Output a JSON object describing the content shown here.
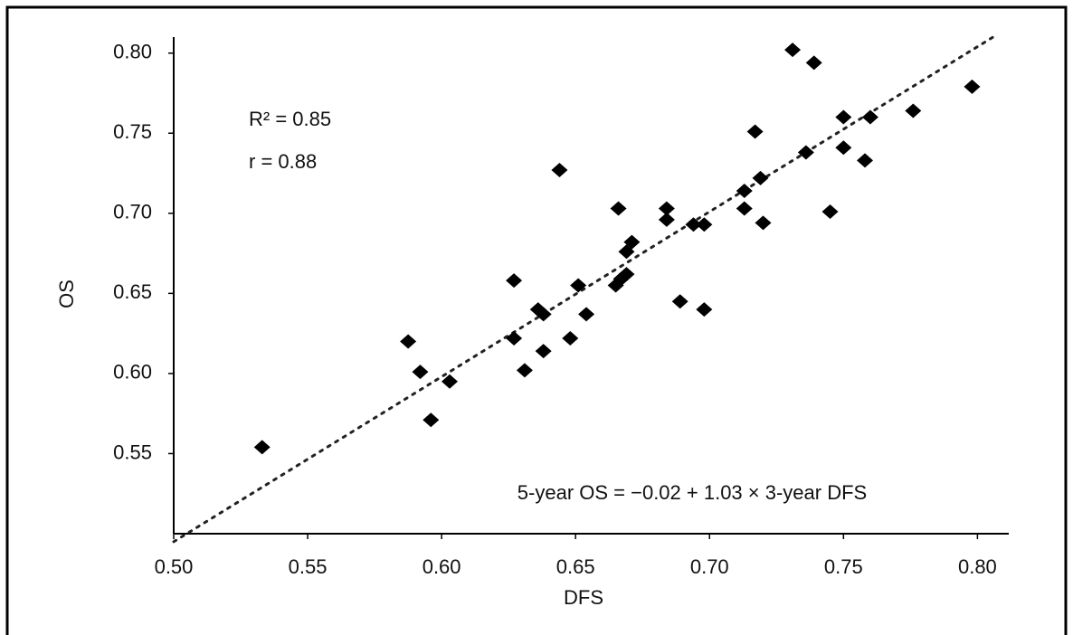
{
  "chart_data": {
    "type": "scatter",
    "xlabel": "DFS",
    "ylabel": "OS",
    "annotations": [
      "R² = 0.85",
      "r = 0.88",
      "5-year OS = −0.02 + 1.03 × 3-year DFS"
    ],
    "trendline": {
      "intercept": -0.02,
      "slope": 1.03
    },
    "color": "#000000",
    "xlim": [
      0.5,
      0.81
    ],
    "ylim": [
      0.5,
      0.81
    ],
    "xticks": [
      {
        "value": 0.5,
        "label": "0.50"
      },
      0.55,
      {
        "value": 0.6,
        "label": "0.60"
      },
      0.65,
      {
        "value": 0.7,
        "label": "0.70"
      },
      0.75,
      {
        "value": 0.8,
        "label": "0.80"
      }
    ],
    "yticks": [
      {
        "value": 0.55,
        "label": "0.55"
      },
      {
        "value": 0.6,
        "label": "0.60"
      },
      {
        "value": 0.65,
        "label": "0.65"
      },
      {
        "value": 0.7,
        "label": "0.70"
      },
      {
        "value": 0.75,
        "label": "0.75"
      },
      {
        "value": 0.8,
        "label": "0.80"
      }
    ],
    "x": [
      0.533,
      0.5875,
      0.592,
      0.596,
      0.603,
      0.627,
      0.627,
      0.631,
      0.636,
      0.638,
      0.638,
      0.648,
      0.651,
      0.644,
      0.654,
      0.666,
      0.665,
      0.667,
      0.669,
      0.669,
      0.671,
      0.684,
      0.684,
      0.689,
      0.694,
      0.698,
      0.698,
      0.713,
      0.713,
      0.717,
      0.719,
      0.72,
      0.731,
      0.739,
      0.736,
      0.745,
      0.75,
      0.75,
      0.758,
      0.76,
      0.776,
      0.798
    ],
    "y": [
      0.554,
      0.62,
      0.601,
      0.571,
      0.595,
      0.658,
      0.622,
      0.602,
      0.64,
      0.637,
      0.614,
      0.622,
      0.655,
      0.727,
      0.637,
      0.703,
      0.655,
      0.659,
      0.662,
      0.676,
      0.682,
      0.703,
      0.696,
      0.645,
      0.693,
      0.693,
      0.64,
      0.714,
      0.703,
      0.751,
      0.722,
      0.694,
      0.802,
      0.794,
      0.738,
      0.701,
      0.76,
      0.741,
      0.733,
      0.76,
      0.764,
      0.779
    ]
  }
}
